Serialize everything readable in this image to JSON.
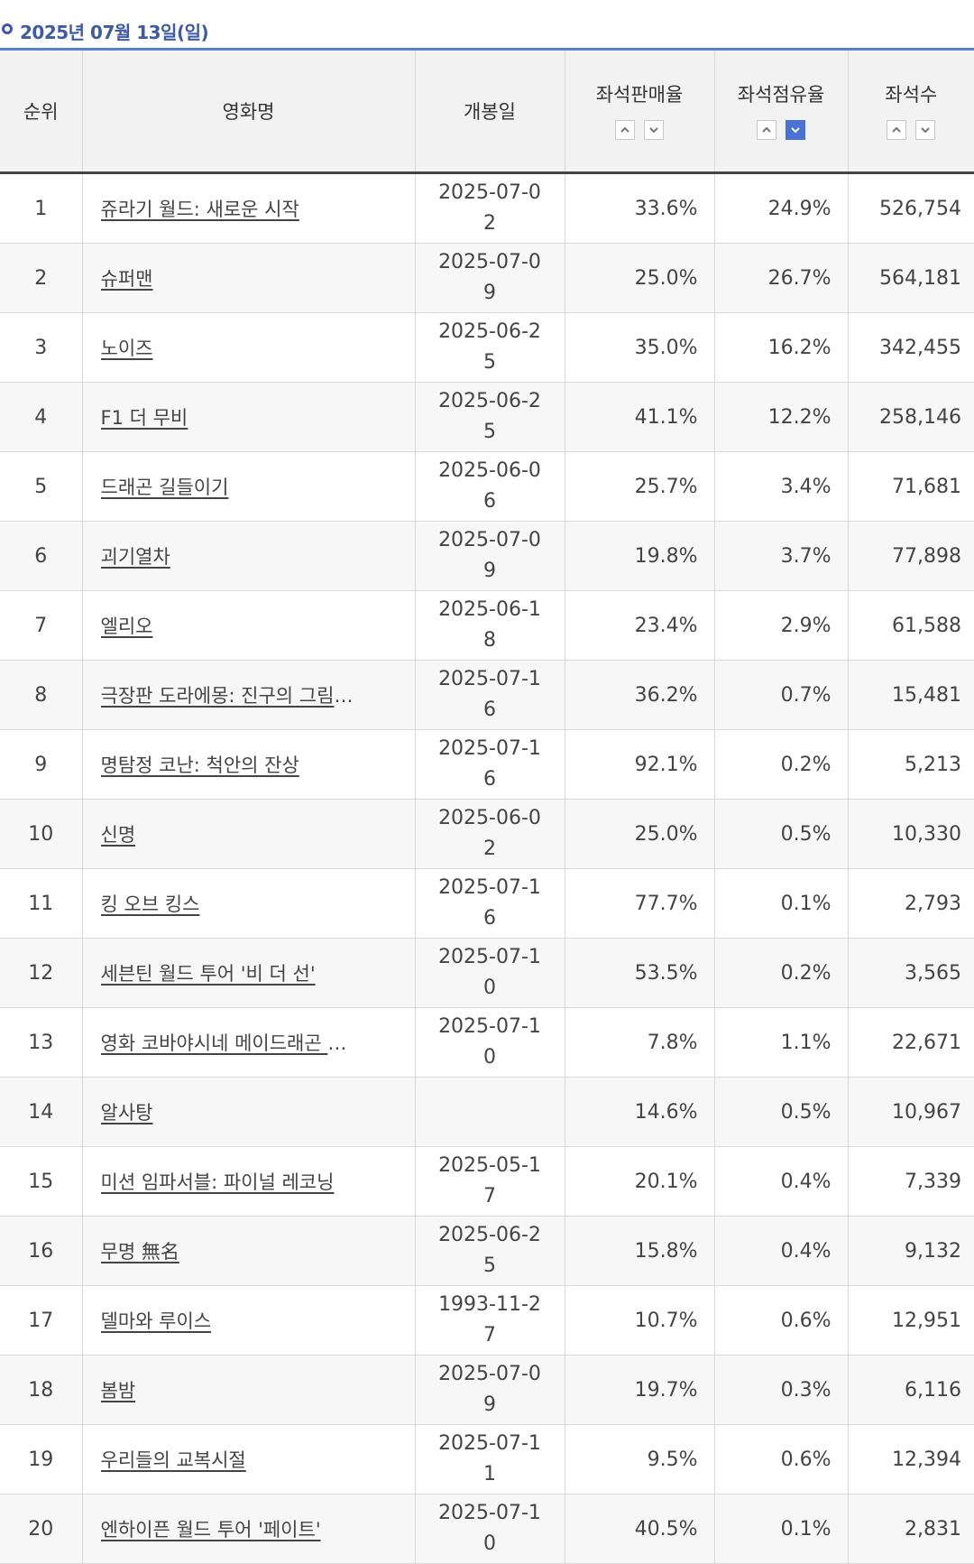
{
  "date_label": "2025년 07월 13일(일)",
  "headers": {
    "rank": "순위",
    "title": "영화명",
    "open_date": "개봉일",
    "sales_rate": "좌석판매율",
    "share_rate": "좌석점유율",
    "seats": "좌석수"
  },
  "sort_icons": [
    "chevron-up-icon",
    "chevron-down-icon"
  ],
  "active_sort": {
    "column": "share_rate",
    "direction": "desc"
  },
  "colors": {
    "accent": "#3d5aa8",
    "active_sort_bg": "#4a72d6"
  },
  "rows": [
    {
      "rank": "1",
      "title": "쥬라기 월드: 새로운 시작",
      "open": "2025-07-02",
      "sales": "33.6%",
      "share": "24.9%",
      "seats": "526,754"
    },
    {
      "rank": "2",
      "title": "슈퍼맨",
      "open": "2025-07-09",
      "sales": "25.0%",
      "share": "26.7%",
      "seats": "564,181"
    },
    {
      "rank": "3",
      "title": "노이즈",
      "open": "2025-06-25",
      "sales": "35.0%",
      "share": "16.2%",
      "seats": "342,455"
    },
    {
      "rank": "4",
      "title": "F1 더 무비",
      "open": "2025-06-25",
      "sales": "41.1%",
      "share": "12.2%",
      "seats": "258,146"
    },
    {
      "rank": "5",
      "title": "드래곤 길들이기",
      "open": "2025-06-06",
      "sales": "25.7%",
      "share": "3.4%",
      "seats": "71,681"
    },
    {
      "rank": "6",
      "title": "괴기열차",
      "open": "2025-07-09",
      "sales": "19.8%",
      "share": "3.7%",
      "seats": "77,898"
    },
    {
      "rank": "7",
      "title": "엘리오",
      "open": "2025-06-18",
      "sales": "23.4%",
      "share": "2.9%",
      "seats": "61,588"
    },
    {
      "rank": "8",
      "title": "극장판 도라에몽: 진구의 그림이야기",
      "open": "2025-07-16",
      "sales": "36.2%",
      "share": "0.7%",
      "seats": "15,481"
    },
    {
      "rank": "9",
      "title": "명탐정 코난: 척안의 잔상",
      "open": "2025-07-16",
      "sales": "92.1%",
      "share": "0.2%",
      "seats": "5,213"
    },
    {
      "rank": "10",
      "title": "신명",
      "open": "2025-06-02",
      "sales": "25.0%",
      "share": "0.5%",
      "seats": "10,330"
    },
    {
      "rank": "11",
      "title": "킹 오브 킹스",
      "open": "2025-07-16",
      "sales": "77.7%",
      "share": "0.1%",
      "seats": "2,793"
    },
    {
      "rank": "12",
      "title": "세븐틴 월드 투어 '비 더 선'",
      "open": "2025-07-10",
      "sales": "53.5%",
      "share": "0.2%",
      "seats": "3,565"
    },
    {
      "rank": "13",
      "title": "영화 코바야시네 메이드래곤 외로…",
      "open": "2025-07-10",
      "sales": "7.8%",
      "share": "1.1%",
      "seats": "22,671"
    },
    {
      "rank": "14",
      "title": "알사탕",
      "open": "",
      "sales": "14.6%",
      "share": "0.5%",
      "seats": "10,967"
    },
    {
      "rank": "15",
      "title": "미션 임파서블: 파이널 레코닝",
      "open": "2025-05-17",
      "sales": "20.1%",
      "share": "0.4%",
      "seats": "7,339"
    },
    {
      "rank": "16",
      "title": "무명 無名",
      "open": "2025-06-25",
      "sales": "15.8%",
      "share": "0.4%",
      "seats": "9,132"
    },
    {
      "rank": "17",
      "title": "델마와 루이스",
      "open": "1993-11-27",
      "sales": "10.7%",
      "share": "0.6%",
      "seats": "12,951"
    },
    {
      "rank": "18",
      "title": "봄밤",
      "open": "2025-07-09",
      "sales": "19.7%",
      "share": "0.3%",
      "seats": "6,116"
    },
    {
      "rank": "19",
      "title": "우리들의 교복시절",
      "open": "2025-07-11",
      "sales": "9.5%",
      "share": "0.6%",
      "seats": "12,394"
    },
    {
      "rank": "20",
      "title": "엔하이픈 월드 투어 '페이트'",
      "open": "2025-07-10",
      "sales": "40.5%",
      "share": "0.1%",
      "seats": "2,831"
    }
  ]
}
